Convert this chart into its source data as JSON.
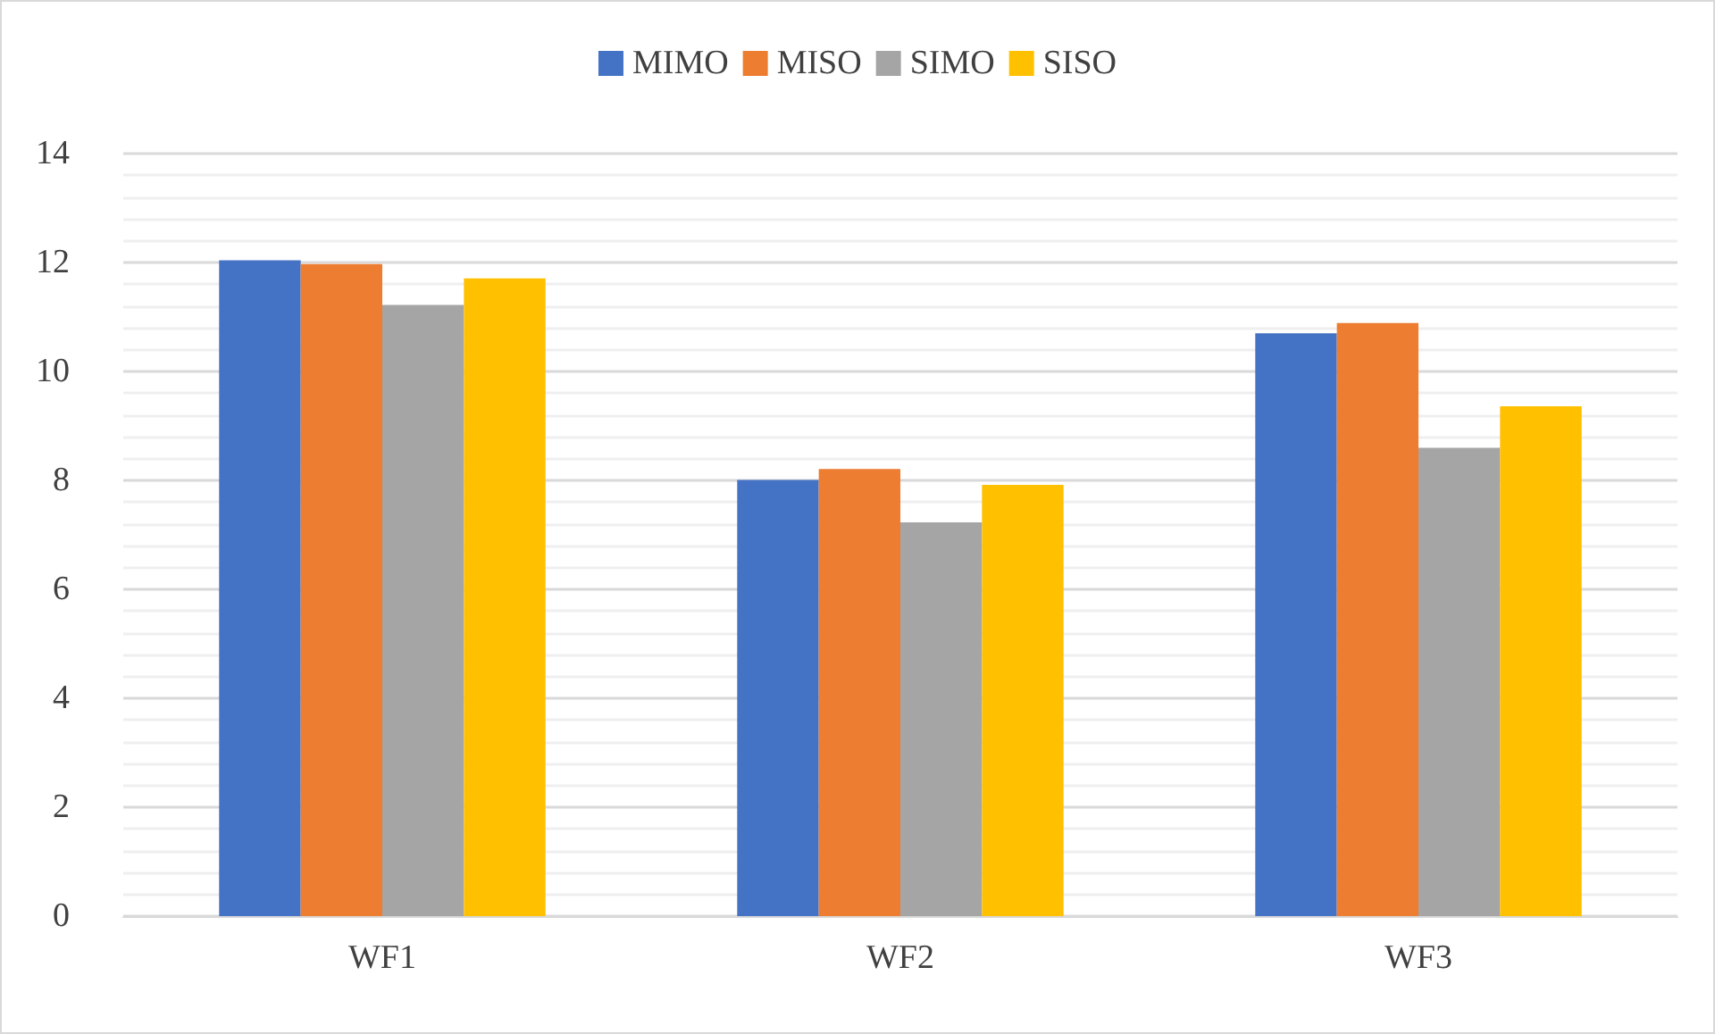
{
  "chart_data": {
    "type": "bar",
    "categories": [
      "WF1",
      "WF2",
      "WF3"
    ],
    "series": [
      {
        "name": "MIMO",
        "color": "#4472c4",
        "values": [
          12.04,
          8.01,
          10.7
        ]
      },
      {
        "name": "MISO",
        "color": "#ed7d31",
        "values": [
          11.97,
          8.21,
          10.89
        ]
      },
      {
        "name": "SIMO",
        "color": "#a5a5a5",
        "values": [
          11.22,
          7.23,
          8.6
        ]
      },
      {
        "name": "SISO",
        "color": "#ffc000",
        "values": [
          11.71,
          7.92,
          9.36
        ]
      }
    ],
    "ylim": [
      0,
      14
    ],
    "yticks": [
      0,
      2,
      4,
      6,
      8,
      10,
      12,
      14
    ],
    "grid": true,
    "legend": "top"
  }
}
